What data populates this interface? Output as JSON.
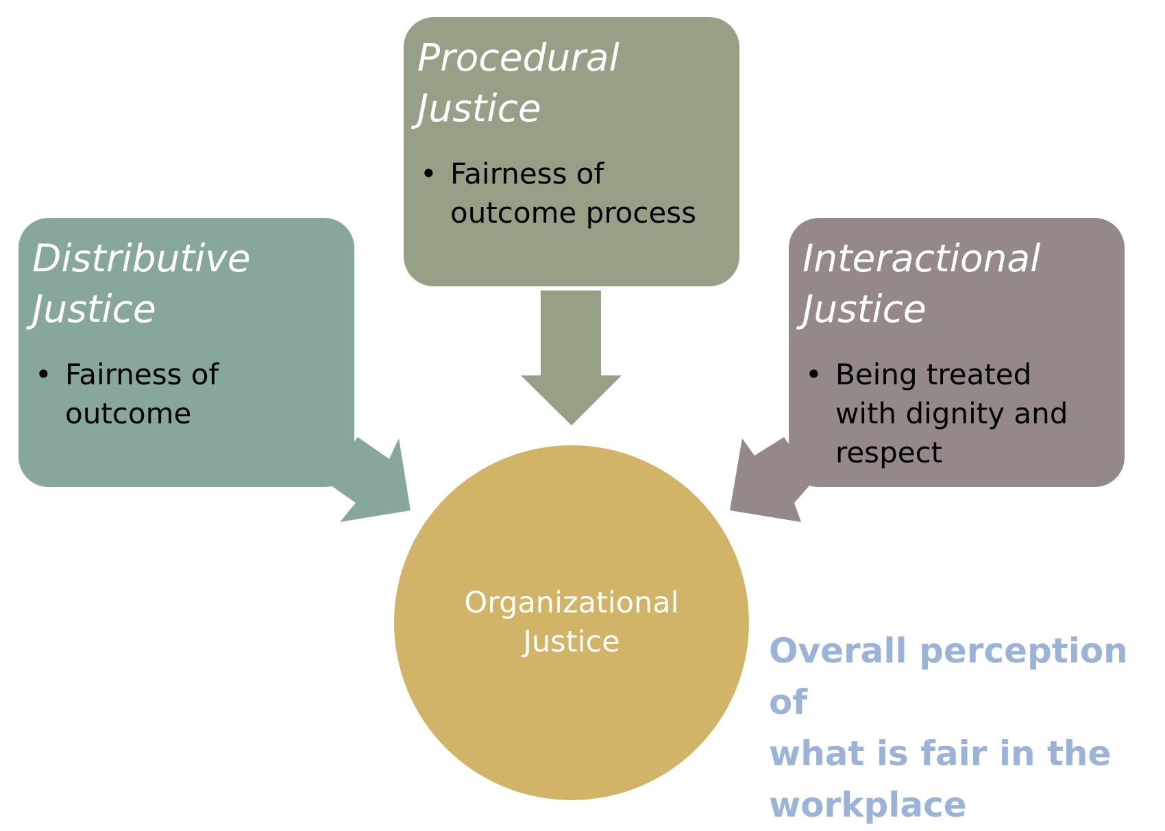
{
  "colors": {
    "distributive": "#86a69e",
    "procedural": "#96a086",
    "interactional": "#948889",
    "hub": "#d1b468",
    "caption": "#9bb3d6"
  },
  "boxes": {
    "distributive": {
      "title_line1": "Distributive",
      "title_line2": "Justice",
      "bullet_line1": "Fairness of",
      "bullet_line2": "outcome"
    },
    "procedural": {
      "title_line1": "Procedural",
      "title_line2": "Justice",
      "bullet_line1": "Fairness of",
      "bullet_line2": "outcome process"
    },
    "interactional": {
      "title_line1": "Interactional",
      "title_line2": "Justice",
      "bullet_line1": "Being treated",
      "bullet_line2": "with dignity and",
      "bullet_line3": "respect"
    }
  },
  "hub": {
    "label_line1": "Organizational",
    "label_line2": "Justice"
  },
  "caption": {
    "line1": "Overall perception of",
    "line2": "what is fair in the",
    "line3": "workplace"
  },
  "bullet_symbol": "•"
}
